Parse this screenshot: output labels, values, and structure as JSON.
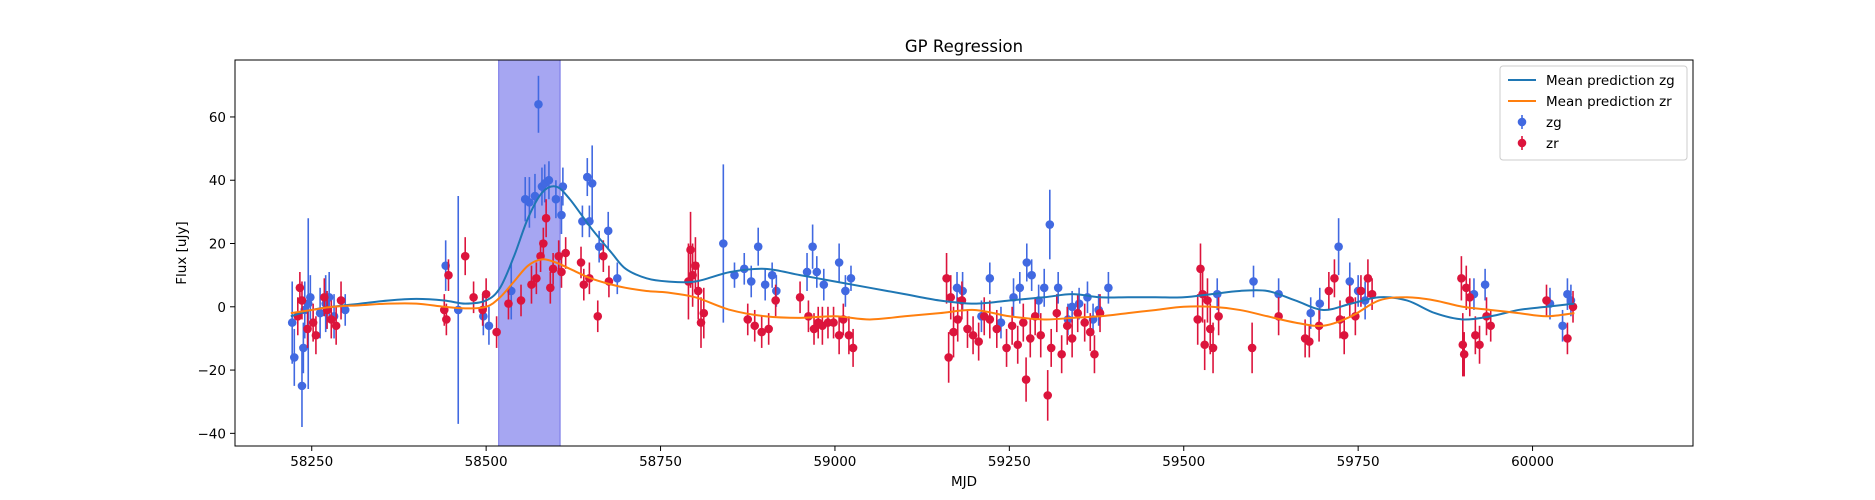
{
  "chart_data": {
    "type": "scatter",
    "title": "GP Regression",
    "xlabel": "MJD",
    "ylabel": "Flux [uJy]",
    "xlim": [
      58140,
      60230
    ],
    "ylim": [
      -44,
      78
    ],
    "x_ticks": [
      58250,
      58500,
      58750,
      59000,
      59250,
      59500,
      59750,
      60000
    ],
    "y_ticks": [
      -40,
      -20,
      0,
      20,
      40,
      60
    ],
    "highlight_span": {
      "x": [
        58518,
        58606
      ],
      "color": "#a6a6f2"
    },
    "legend_position": "top-right",
    "series": [
      {
        "name": "Mean prediction zg",
        "kind": "line",
        "color": "#1f77b4",
        "x": [
          58220,
          58250,
          58280,
          58320,
          58360,
          58400,
          58440,
          58470,
          58500,
          58520,
          58540,
          58560,
          58580,
          58600,
          58620,
          58650,
          58680,
          58700,
          58730,
          58760,
          58800,
          58850,
          58900,
          58950,
          59000,
          59050,
          59100,
          59150,
          59200,
          59250,
          59300,
          59340,
          59380,
          59420,
          59460,
          59500,
          59540,
          59580,
          59620,
          59660,
          59700,
          59740,
          59780,
          59820,
          59860,
          59900,
          59940,
          59980,
          60020,
          60060
        ],
        "y": [
          -3,
          -1,
          0,
          1,
          2,
          2.5,
          2,
          1,
          2,
          6,
          16,
          28,
          36,
          38,
          34,
          25,
          17,
          12,
          9,
          8,
          8,
          11,
          12,
          10,
          8,
          6,
          4,
          2,
          1,
          2,
          3,
          4,
          3,
          3,
          3,
          3,
          4,
          5,
          5,
          2,
          -1,
          1,
          3,
          2,
          -2,
          -4,
          -3,
          -1,
          0,
          1
        ]
      },
      {
        "name": "Mean prediction zr",
        "kind": "line",
        "color": "#ff7f0e",
        "x": [
          58220,
          58250,
          58280,
          58320,
          58360,
          58400,
          58440,
          58470,
          58500,
          58520,
          58540,
          58560,
          58580,
          58600,
          58620,
          58650,
          58680,
          58700,
          58730,
          58760,
          58800,
          58850,
          58900,
          58950,
          59000,
          59050,
          59100,
          59150,
          59200,
          59250,
          59300,
          59340,
          59380,
          59420,
          59460,
          59500,
          59540,
          59580,
          59620,
          59660,
          59700,
          59740,
          59780,
          59820,
          59860,
          59900,
          59940,
          59980,
          60020,
          60060
        ],
        "y": [
          -2,
          -1,
          0,
          0.5,
          1,
          1,
          0,
          -0.5,
          0,
          3,
          8,
          13,
          15,
          14,
          12,
          9,
          7,
          6,
          5,
          4.5,
          3,
          -1,
          -3,
          -3.5,
          -3,
          -4,
          -3,
          -2,
          -1,
          -3,
          -4,
          -3.5,
          -3,
          -2,
          -1,
          0,
          0,
          -1,
          -3,
          -5,
          -6,
          -3,
          2,
          3,
          2,
          0,
          -1,
          -2,
          -3,
          -2
        ]
      },
      {
        "name": "zg",
        "kind": "errorbar",
        "color": "#4169e1",
        "points": [
          [
            58222,
            -5,
            13
          ],
          [
            58225,
            -16,
            9
          ],
          [
            58236,
            -25,
            13
          ],
          [
            58238,
            -13,
            8
          ],
          [
            58240,
            -1,
            9
          ],
          [
            58245,
            1,
            27
          ],
          [
            58248,
            3,
            7
          ],
          [
            58262,
            -2,
            8
          ],
          [
            58270,
            1,
            9
          ],
          [
            58275,
            3,
            8
          ],
          [
            58282,
            -3,
            7
          ],
          [
            58298,
            -1,
            5
          ],
          [
            58442,
            13,
            8
          ],
          [
            58460,
            -1,
            36
          ],
          [
            58496,
            -3,
            6
          ],
          [
            58504,
            -6,
            6
          ],
          [
            58536,
            5,
            9
          ],
          [
            58556,
            34,
            7
          ],
          [
            58562,
            33,
            8
          ],
          [
            58570,
            35,
            7
          ],
          [
            58575,
            64,
            9
          ],
          [
            58580,
            38,
            6
          ],
          [
            58584,
            39,
            6
          ],
          [
            58590,
            40,
            6
          ],
          [
            58600,
            34,
            6
          ],
          [
            58608,
            29,
            6
          ],
          [
            58610,
            38,
            6
          ],
          [
            58638,
            27,
            5
          ],
          [
            58645,
            41,
            6
          ],
          [
            58648,
            27,
            5
          ],
          [
            58652,
            39,
            12
          ],
          [
            58662,
            19,
            5
          ],
          [
            58675,
            24,
            6
          ],
          [
            58688,
            9,
            5
          ],
          [
            58840,
            20,
            25
          ],
          [
            58856,
            10,
            4
          ],
          [
            58870,
            12,
            5
          ],
          [
            58880,
            8,
            5
          ],
          [
            58890,
            19,
            6
          ],
          [
            58900,
            7,
            5
          ],
          [
            58910,
            10,
            4
          ],
          [
            58916,
            5,
            5
          ],
          [
            58960,
            11,
            6
          ],
          [
            58968,
            19,
            7
          ],
          [
            58974,
            11,
            5
          ],
          [
            58984,
            7,
            5
          ],
          [
            59006,
            14,
            6
          ],
          [
            59015,
            5,
            5
          ],
          [
            59023,
            9,
            4
          ],
          [
            59175,
            6,
            5
          ],
          [
            59183,
            5,
            6
          ],
          [
            59210,
            -3,
            5
          ],
          [
            59222,
            9,
            5
          ],
          [
            59238,
            -5,
            5
          ],
          [
            59256,
            3,
            6
          ],
          [
            59265,
            6,
            5
          ],
          [
            59275,
            14,
            6
          ],
          [
            59282,
            10,
            5
          ],
          [
            59292,
            2,
            5
          ],
          [
            59300,
            6,
            6
          ],
          [
            59308,
            26,
            11
          ],
          [
            59320,
            6,
            5
          ],
          [
            59334,
            -4,
            5
          ],
          [
            59340,
            0,
            5
          ],
          [
            59350,
            1,
            5
          ],
          [
            59362,
            3,
            5
          ],
          [
            59370,
            -4,
            5
          ],
          [
            59378,
            -1,
            5
          ],
          [
            59392,
            6,
            5
          ],
          [
            59548,
            4,
            5
          ],
          [
            59600,
            8,
            5
          ],
          [
            59636,
            4,
            5
          ],
          [
            59682,
            -2,
            5
          ],
          [
            59695,
            1,
            5
          ],
          [
            59722,
            19,
            9
          ],
          [
            59738,
            8,
            6
          ],
          [
            59750,
            5,
            5
          ],
          [
            59760,
            2,
            6
          ],
          [
            59916,
            4,
            5
          ],
          [
            59932,
            7,
            5
          ],
          [
            60025,
            1,
            5
          ],
          [
            60043,
            -6,
            5
          ],
          [
            60050,
            4,
            5
          ],
          [
            60055,
            2,
            5
          ]
        ]
      },
      {
        "name": "zr",
        "kind": "errorbar",
        "color": "#dc143c",
        "points": [
          [
            58230,
            -3,
            6
          ],
          [
            58233,
            6,
            5
          ],
          [
            58236,
            2,
            6
          ],
          [
            58244,
            -7,
            6
          ],
          [
            58252,
            -5,
            6
          ],
          [
            58256,
            -9,
            6
          ],
          [
            58268,
            3,
            6
          ],
          [
            58272,
            -1,
            6
          ],
          [
            58278,
            -4,
            6
          ],
          [
            58285,
            -6,
            6
          ],
          [
            58292,
            2,
            6
          ],
          [
            58440,
            -1,
            5
          ],
          [
            58443,
            -4,
            5
          ],
          [
            58446,
            10,
            5
          ],
          [
            58470,
            16,
            6
          ],
          [
            58482,
            3,
            5
          ],
          [
            58495,
            -1,
            5
          ],
          [
            58500,
            4,
            5
          ],
          [
            58515,
            -8,
            5
          ],
          [
            58532,
            1,
            5
          ],
          [
            58550,
            2,
            5
          ],
          [
            58565,
            7,
            6
          ],
          [
            58572,
            9,
            5
          ],
          [
            58578,
            16,
            5
          ],
          [
            58582,
            20,
            5
          ],
          [
            58586,
            28,
            6
          ],
          [
            58592,
            6,
            5
          ],
          [
            58596,
            12,
            5
          ],
          [
            58604,
            16,
            5
          ],
          [
            58608,
            11,
            5
          ],
          [
            58614,
            17,
            5
          ],
          [
            58636,
            14,
            5
          ],
          [
            58640,
            7,
            5
          ],
          [
            58648,
            9,
            5
          ],
          [
            58660,
            -3,
            5
          ],
          [
            58668,
            16,
            5
          ],
          [
            58676,
            8,
            5
          ],
          [
            58790,
            8,
            12
          ],
          [
            58793,
            18,
            12
          ],
          [
            58796,
            10,
            10
          ],
          [
            58800,
            13,
            9
          ],
          [
            58804,
            5,
            9
          ],
          [
            58808,
            -5,
            8
          ],
          [
            58812,
            -2,
            8
          ],
          [
            58875,
            -4,
            5
          ],
          [
            58885,
            -6,
            5
          ],
          [
            58895,
            -8,
            5
          ],
          [
            58905,
            -7,
            5
          ],
          [
            58915,
            2,
            5
          ],
          [
            58950,
            3,
            5
          ],
          [
            58962,
            -3,
            5
          ],
          [
            58970,
            -7,
            5
          ],
          [
            58976,
            -5,
            5
          ],
          [
            58982,
            -6,
            6
          ],
          [
            58990,
            -5,
            5
          ],
          [
            58998,
            -5,
            5
          ],
          [
            59006,
            -9,
            6
          ],
          [
            59012,
            -4,
            5
          ],
          [
            59020,
            -9,
            6
          ],
          [
            59026,
            -13,
            6
          ],
          [
            59160,
            9,
            8
          ],
          [
            59163,
            -16,
            8
          ],
          [
            59166,
            3,
            7
          ],
          [
            59170,
            -8,
            8
          ],
          [
            59176,
            -4,
            7
          ],
          [
            59182,
            2,
            6
          ],
          [
            59190,
            -7,
            6
          ],
          [
            59198,
            -9,
            6
          ],
          [
            59206,
            -11,
            6
          ],
          [
            59214,
            -3,
            6
          ],
          [
            59222,
            -4,
            6
          ],
          [
            59232,
            -7,
            6
          ],
          [
            59246,
            -13,
            6
          ],
          [
            59254,
            -6,
            6
          ],
          [
            59262,
            -12,
            6
          ],
          [
            59270,
            -5,
            6
          ],
          [
            59274,
            -23,
            7
          ],
          [
            59280,
            -10,
            6
          ],
          [
            59287,
            -3,
            6
          ],
          [
            59295,
            -9,
            7
          ],
          [
            59305,
            -28,
            8
          ],
          [
            59310,
            -13,
            6
          ],
          [
            59318,
            -2,
            6
          ],
          [
            59325,
            -15,
            6
          ],
          [
            59333,
            -6,
            6
          ],
          [
            59340,
            -10,
            6
          ],
          [
            59348,
            -2,
            6
          ],
          [
            59358,
            -5,
            6
          ],
          [
            59366,
            -8,
            6
          ],
          [
            59372,
            -15,
            6
          ],
          [
            59380,
            -2,
            6
          ],
          [
            59520,
            -4,
            8
          ],
          [
            59524,
            12,
            8
          ],
          [
            59527,
            4,
            9
          ],
          [
            59530,
            -12,
            8
          ],
          [
            59534,
            2,
            7
          ],
          [
            59538,
            -7,
            8
          ],
          [
            59542,
            -13,
            8
          ],
          [
            59550,
            -3,
            6
          ],
          [
            59598,
            -13,
            8
          ],
          [
            59636,
            -3,
            6
          ],
          [
            59674,
            -10,
            6
          ],
          [
            59680,
            -11,
            5
          ],
          [
            59694,
            -6,
            5
          ],
          [
            59708,
            5,
            6
          ],
          [
            59716,
            9,
            6
          ],
          [
            59724,
            -4,
            6
          ],
          [
            59730,
            -9,
            6
          ],
          [
            59738,
            2,
            5
          ],
          [
            59746,
            -3,
            6
          ],
          [
            59754,
            5,
            5
          ],
          [
            59764,
            9,
            6
          ],
          [
            59770,
            4,
            5
          ],
          [
            59898,
            9,
            7
          ],
          [
            59900,
            -12,
            10
          ],
          [
            59902,
            -15,
            7
          ],
          [
            59905,
            6,
            7
          ],
          [
            59910,
            3,
            6
          ],
          [
            59918,
            -9,
            6
          ],
          [
            59924,
            -12,
            6
          ],
          [
            59934,
            -3,
            6
          ],
          [
            59940,
            -6,
            5
          ],
          [
            60020,
            2,
            5
          ],
          [
            60050,
            -10,
            5
          ],
          [
            60058,
            0,
            5
          ]
        ]
      }
    ]
  }
}
